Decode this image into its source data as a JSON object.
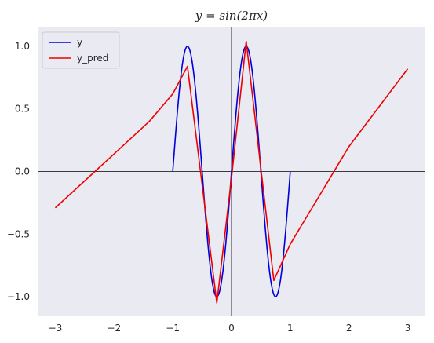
{
  "chart_data": {
    "type": "line",
    "title": "y = sin(2πx)",
    "xlabel": "",
    "ylabel": "",
    "xlim": [
      -3.3,
      3.3
    ],
    "ylim": [
      -1.15,
      1.15
    ],
    "xticks": [
      -3,
      -2,
      -1,
      0,
      1,
      2,
      3
    ],
    "xtick_labels": [
      "−3",
      "−2",
      "−1",
      "0",
      "1",
      "2",
      "3"
    ],
    "yticks": [
      -1.0,
      -0.5,
      0.0,
      0.5,
      1.0
    ],
    "ytick_labels": [
      "−1.0",
      "−0.5",
      "0.0",
      "0.5",
      "1.0"
    ],
    "grid": false,
    "legend_position": "top-left",
    "reference_lines": {
      "x": 0,
      "y": 0
    },
    "series": [
      {
        "name": "y",
        "color": "#0000dd",
        "function": "sin(2*pi*x)",
        "x_range": [
          -1,
          1
        ]
      },
      {
        "name": "y_pred",
        "color": "#ee0000",
        "x": [
          -3.0,
          -2.0,
          -1.4,
          -1.0,
          -0.75,
          -0.25,
          0.0,
          0.25,
          0.72,
          1.0,
          2.0,
          3.0
        ],
        "y": [
          -0.29,
          0.14,
          0.4,
          0.62,
          0.84,
          -1.05,
          -0.05,
          1.04,
          -0.87,
          -0.58,
          0.2,
          0.82
        ]
      }
    ]
  }
}
